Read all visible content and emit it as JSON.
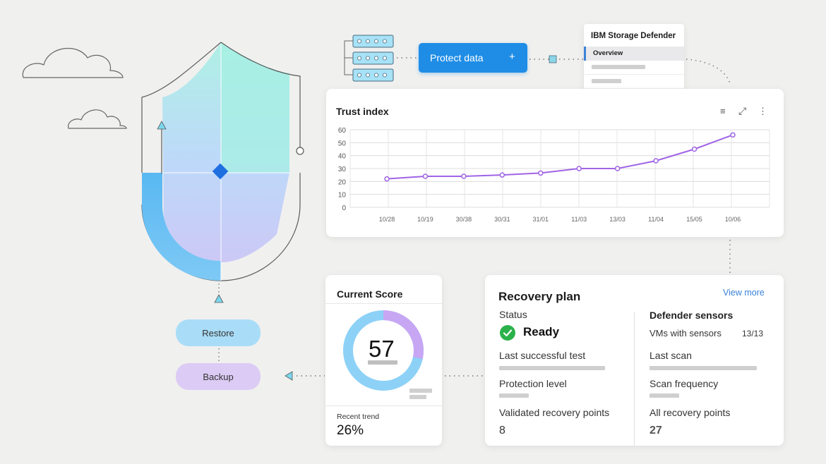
{
  "protect_button": {
    "label": "Protect data",
    "plus": "+"
  },
  "product_menu": {
    "title": "IBM Storage Defender",
    "items": [
      "Overview"
    ]
  },
  "trust_index": {
    "title": "Trust index",
    "toolbar": {
      "list_icon": "≡",
      "expand_icon": "⤢",
      "more_icon": "⋮"
    }
  },
  "chart_data": {
    "type": "line",
    "title": "Trust index",
    "x": [
      "10/28",
      "10/19",
      "30/38",
      "30/31",
      "31/01",
      "11/03",
      "13/03",
      "11/04",
      "15/05",
      "10/06"
    ],
    "series": [
      {
        "values": [
          22,
          24,
          24,
          25,
          26.5,
          30,
          30,
          36,
          45,
          56
        ]
      }
    ],
    "yticks": [
      0,
      10,
      20,
      30,
      40,
      50,
      60
    ],
    "ylim": [
      0,
      60
    ],
    "grid": true,
    "color": "#a064e6"
  },
  "current_score": {
    "title": "Current Score",
    "score": "57",
    "score_fraction": 0.57,
    "recent_trend_label": "Recent trend",
    "recent_trend_value": "26%"
  },
  "recovery_plan": {
    "title": "Recovery plan",
    "view_more": "View more",
    "status_label": "Status",
    "status_value": "Ready",
    "last_test_label": "Last successful test",
    "protection_label": "Protection level",
    "validated_label": "Validated recovery points",
    "validated_value": "8"
  },
  "defender_sensors": {
    "title": "Defender sensors",
    "vms_label": "VMs with sensors",
    "vms_value": "13/13",
    "last_scan_label": "Last scan",
    "scan_freq_label": "Scan frequency",
    "all_points_label": "All recovery points",
    "all_points_value": "27"
  },
  "actions": {
    "restore": "Restore",
    "backup": "Backup"
  },
  "colors": {
    "accent": "#1f8de6",
    "purple": "#a064e6",
    "success": "#2bb24a",
    "link": "#3b82d6"
  }
}
